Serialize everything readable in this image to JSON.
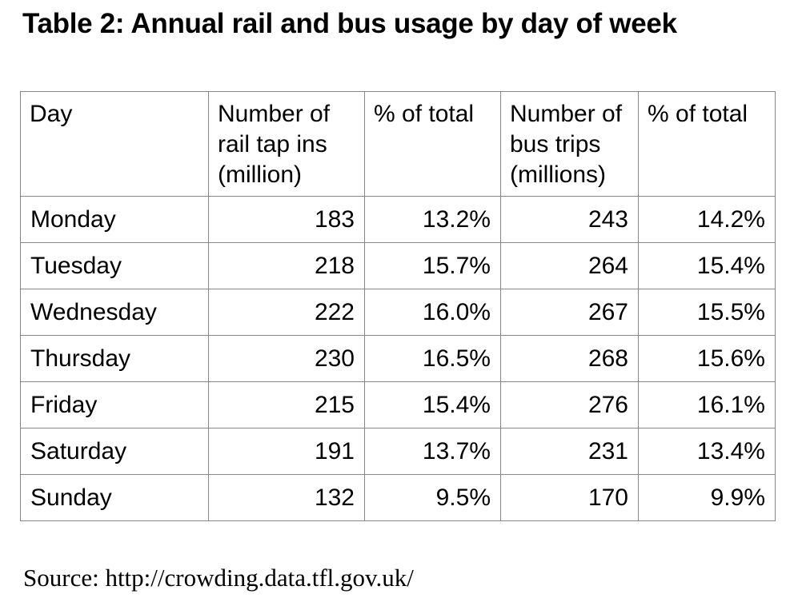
{
  "chart_data": {
    "type": "table",
    "title": "Table 2: Annual rail and bus usage by day of week",
    "columns": [
      "Day",
      "Number of rail tap ins (million)",
      "% of total",
      "Number of bus trips (millions)",
      "% of total"
    ],
    "rows": [
      [
        "Monday",
        "183",
        "13.2%",
        "243",
        "14.2%"
      ],
      [
        "Tuesday",
        "218",
        "15.7%",
        "264",
        "15.4%"
      ],
      [
        "Wednesday",
        "222",
        "16.0%",
        "267",
        "15.5%"
      ],
      [
        "Thursday",
        "230",
        "16.5%",
        "268",
        "15.6%"
      ],
      [
        "Friday",
        "215",
        "15.4%",
        "276",
        "16.1%"
      ],
      [
        "Saturday",
        "191",
        "13.7%",
        "231",
        "13.4%"
      ],
      [
        "Sunday",
        "132",
        "9.5%",
        "170",
        "9.9%"
      ]
    ],
    "source": "Source: http://crowding.data.tfl.gov.uk/",
    "layout": {
      "grid": "on",
      "border_color": "#878787",
      "text_color": "#000000",
      "background_color": "#ffffff",
      "number_alignment": "right"
    }
  }
}
